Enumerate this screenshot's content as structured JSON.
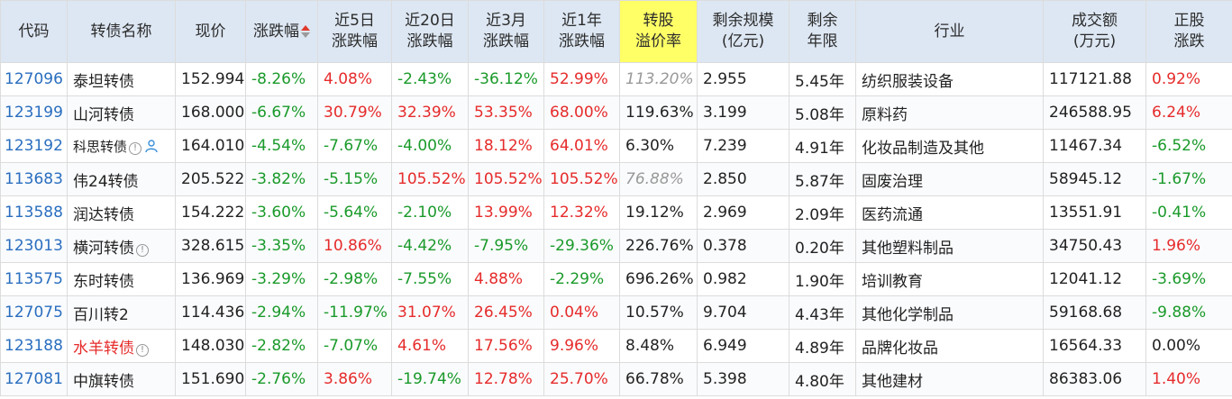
{
  "headers": [
    {
      "key": "code",
      "lines": [
        "代码"
      ]
    },
    {
      "key": "name",
      "lines": [
        "转债名称"
      ]
    },
    {
      "key": "price",
      "lines": [
        "现价"
      ]
    },
    {
      "key": "chg",
      "lines": [
        "涨跌幅"
      ],
      "sorted": "desc"
    },
    {
      "key": "chg5d",
      "lines": [
        "近5日",
        "涨跌幅"
      ]
    },
    {
      "key": "chg20d",
      "lines": [
        "近20日",
        "涨跌幅"
      ]
    },
    {
      "key": "chg3m",
      "lines": [
        "近3月",
        "涨跌幅"
      ]
    },
    {
      "key": "chg1y",
      "lines": [
        "近1年",
        "涨跌幅"
      ]
    },
    {
      "key": "premium",
      "lines": [
        "转股",
        "溢价率"
      ],
      "highlight": "#ffff66"
    },
    {
      "key": "scale",
      "lines": [
        "剩余规模",
        "(亿元)"
      ]
    },
    {
      "key": "years",
      "lines": [
        "剩余",
        "年限"
      ]
    },
    {
      "key": "industry",
      "lines": [
        "行业"
      ]
    },
    {
      "key": "volume",
      "lines": [
        "成交额",
        "(万元)"
      ]
    },
    {
      "key": "stock_chg",
      "lines": [
        "正股",
        "涨跌"
      ]
    }
  ],
  "colors": {
    "up": "#e62b2b",
    "down": "#1a9a2a",
    "code": "#2a6ebf",
    "muted": "#999999"
  },
  "rows": [
    {
      "code": "127096",
      "name": "泰坦转债",
      "price": "152.994",
      "chg": "-8.26%",
      "chg5d": "4.08%",
      "chg20d": "-2.43%",
      "chg3m": "-36.12%",
      "chg1y": "52.99%",
      "premium": "113.20%",
      "premium_muted": true,
      "scale": "2.955",
      "years": "5.45年",
      "industry": "纺织服装设备",
      "volume": "117121.88",
      "stock_chg": "0.92%"
    },
    {
      "code": "123199",
      "name": "山河转债",
      "price": "168.000",
      "chg": "-6.67%",
      "chg5d": "30.79%",
      "chg20d": "32.39%",
      "chg3m": "53.35%",
      "chg1y": "68.00%",
      "premium": "119.63%",
      "scale": "3.199",
      "years": "5.08年",
      "industry": "原料药",
      "volume": "246588.95",
      "stock_chg": "6.24%"
    },
    {
      "code": "123192",
      "name": "科思转债",
      "name_small": true,
      "info": true,
      "person": true,
      "price": "164.010",
      "chg": "-4.54%",
      "chg5d": "-7.67%",
      "chg20d": "-4.00%",
      "chg3m": "18.12%",
      "chg1y": "64.01%",
      "premium": "6.30%",
      "scale": "7.239",
      "years": "4.91年",
      "industry": "化妆品制造及其他",
      "volume": "11467.34",
      "stock_chg": "-6.52%"
    },
    {
      "code": "113683",
      "name": "伟24转债",
      "price": "205.522",
      "chg": "-3.82%",
      "chg5d": "-5.15%",
      "chg20d": "105.52%",
      "chg3m": "105.52%",
      "chg1y": "105.52%",
      "premium": "76.88%",
      "premium_muted": true,
      "scale": "2.850",
      "years": "5.87年",
      "industry": "固废治理",
      "volume": "58945.12",
      "stock_chg": "-1.67%"
    },
    {
      "code": "113588",
      "name": "润达转债",
      "price": "154.222",
      "chg": "-3.60%",
      "chg5d": "-5.64%",
      "chg20d": "-2.10%",
      "chg3m": "13.99%",
      "chg1y": "12.32%",
      "premium": "19.12%",
      "scale": "2.969",
      "years": "2.09年",
      "industry": "医药流通",
      "volume": "13551.91",
      "stock_chg": "-0.41%"
    },
    {
      "code": "123013",
      "name": "横河转债",
      "info": true,
      "price": "328.615",
      "chg": "-3.35%",
      "chg5d": "10.86%",
      "chg20d": "-4.42%",
      "chg3m": "-7.95%",
      "chg1y": "-29.36%",
      "premium": "226.76%",
      "scale": "0.378",
      "years": "0.20年",
      "industry": "其他塑料制品",
      "volume": "34750.43",
      "stock_chg": "1.96%"
    },
    {
      "code": "113575",
      "name": "东时转债",
      "price": "136.969",
      "chg": "-3.29%",
      "chg5d": "-2.98%",
      "chg20d": "-7.55%",
      "chg3m": "4.88%",
      "chg1y": "-2.29%",
      "premium": "696.26%",
      "scale": "0.982",
      "years": "1.90年",
      "industry": "培训教育",
      "volume": "12041.12",
      "stock_chg": "-3.69%"
    },
    {
      "code": "127075",
      "name": "百川转2",
      "price": "114.436",
      "chg": "-2.94%",
      "chg5d": "-11.97%",
      "chg20d": "31.07%",
      "chg3m": "26.45%",
      "chg1y": "0.04%",
      "premium": "10.57%",
      "scale": "9.704",
      "years": "4.43年",
      "industry": "其他化学制品",
      "volume": "59168.68",
      "stock_chg": "-9.88%"
    },
    {
      "code": "123188",
      "name": "水羊转债",
      "name_red": true,
      "info": true,
      "price": "148.030",
      "chg": "-2.82%",
      "chg5d": "-7.07%",
      "chg20d": "4.61%",
      "chg3m": "17.56%",
      "chg1y": "9.96%",
      "premium": "8.48%",
      "scale": "6.949",
      "years": "4.89年",
      "industry": "品牌化妆品",
      "volume": "16564.33",
      "stock_chg": "0.00%"
    },
    {
      "code": "127081",
      "name": "中旗转债",
      "price": "151.690",
      "chg": "-2.76%",
      "chg5d": "3.86%",
      "chg20d": "-19.74%",
      "chg3m": "12.78%",
      "chg1y": "25.70%",
      "premium": "66.78%",
      "scale": "5.398",
      "years": "4.80年",
      "industry": "其他建材",
      "volume": "86383.06",
      "stock_chg": "1.40%"
    }
  ]
}
